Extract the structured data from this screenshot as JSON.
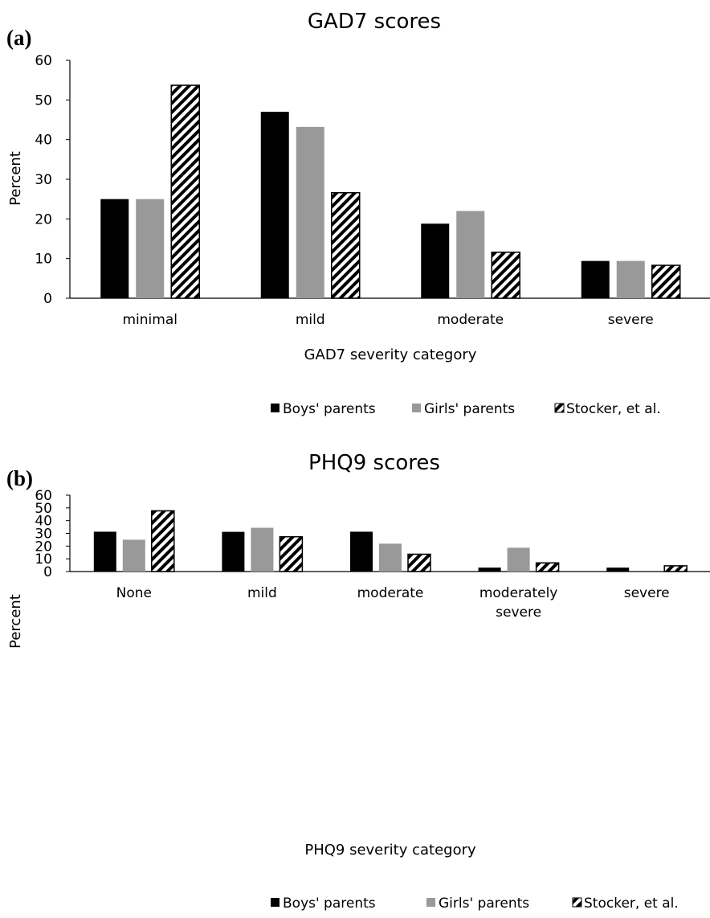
{
  "colors": {
    "boys": "#000000",
    "girls": "#999999",
    "stocker_stripe": "#000000",
    "stocker_bg": "#ffffff",
    "axis": "#000000"
  },
  "chart_data": [
    {
      "type": "bar",
      "panel_label": "(a)",
      "title": "GAD7 scores",
      "xlabel": "GAD7 severity category",
      "ylabel": "Percent",
      "ylim": [
        0,
        60
      ],
      "yticks": [
        "0",
        "10",
        "20",
        "30",
        "40",
        "50",
        "60"
      ],
      "grid": false,
      "legend": "bottom",
      "categories": [
        [
          "minimal"
        ],
        [
          "mild"
        ],
        [
          "moderate"
        ],
        [
          "severe"
        ]
      ],
      "series": [
        {
          "name": "Boys' parents",
          "pattern": "solid-black",
          "values": [
            25,
            47,
            18.8,
            9.4
          ]
        },
        {
          "name": "Girls' parents",
          "pattern": "solid-gray",
          "values": [
            25,
            43.2,
            22,
            9.4
          ]
        },
        {
          "name": "Stocker, et al.",
          "pattern": "hatched",
          "values": [
            53.7,
            26.6,
            11.6,
            8.3
          ]
        }
      ]
    },
    {
      "type": "bar",
      "panel_label": "(b)",
      "title": "PHQ9 scores",
      "xlabel": "PHQ9 severity category",
      "ylabel": "Percent",
      "ylim": [
        0,
        60
      ],
      "yticks": [
        "0",
        "10",
        "20",
        "30",
        "40",
        "50",
        "60"
      ],
      "grid": false,
      "legend": "bottom",
      "categories": [
        [
          "None"
        ],
        [
          "mild"
        ],
        [
          "moderate"
        ],
        [
          "moderately",
          "severe"
        ],
        [
          "severe"
        ]
      ],
      "series": [
        {
          "name": "Boys' parents",
          "pattern": "solid-black",
          "values": [
            31.3,
            31.2,
            31.3,
            3.1,
            3.1
          ]
        },
        {
          "name": "Girls' parents",
          "pattern": "solid-gray",
          "values": [
            25,
            34.4,
            21.9,
            18.7,
            0
          ]
        },
        {
          "name": "Stocker, et al.",
          "pattern": "hatched",
          "values": [
            47.7,
            27.3,
            13.6,
            6.8,
            4.5
          ]
        }
      ]
    }
  ]
}
